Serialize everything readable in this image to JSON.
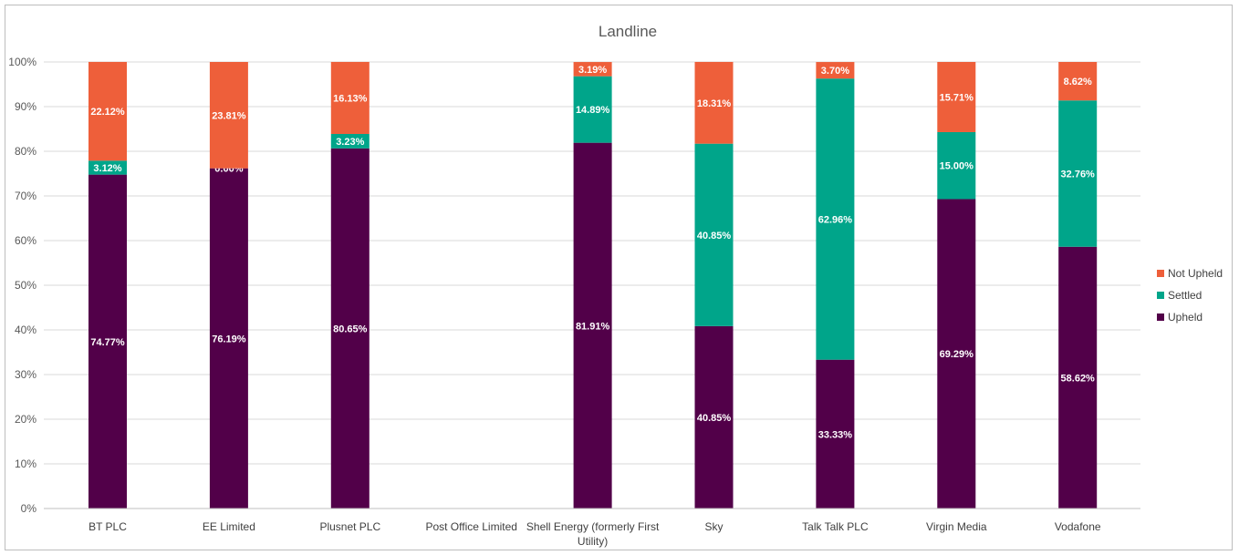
{
  "chart_data": {
    "type": "bar",
    "stacked": true,
    "title": "Landline",
    "categories": [
      "BT PLC",
      "EE Limited",
      "Plusnet PLC",
      "Post Office Limited",
      "Shell Energy (formerly First Utility)",
      "Sky",
      "Talk Talk PLC",
      "Virgin Media",
      "Vodafone"
    ],
    "series": [
      {
        "name": "Upheld",
        "color": "#520049",
        "values": [
          74.77,
          76.19,
          80.65,
          0,
          81.91,
          40.85,
          33.33,
          69.29,
          58.62
        ],
        "labels": [
          "74.77%",
          "76.19%",
          "80.65%",
          "",
          "81.91%",
          "40.85%",
          "33.33%",
          "69.29%",
          "58.62%"
        ]
      },
      {
        "name": "Settled",
        "color": "#00A58A",
        "values": [
          3.12,
          0.0,
          3.23,
          0,
          14.89,
          40.85,
          62.96,
          15.0,
          32.76
        ],
        "labels": [
          "3.12%",
          "0.00%",
          "3.23%",
          "",
          "14.89%",
          "40.85%",
          "62.96%",
          "15.00%",
          "32.76%"
        ]
      },
      {
        "name": "Not Upheld",
        "color": "#EE5F3A",
        "values": [
          22.12,
          23.81,
          16.13,
          0,
          3.19,
          18.31,
          3.7,
          15.71,
          8.62
        ],
        "labels": [
          "22.12%",
          "23.81%",
          "16.13%",
          "",
          "3.19%",
          "18.31%",
          "3.70%",
          "15.71%",
          "8.62%"
        ]
      }
    ],
    "yticks": [
      "0%",
      "10%",
      "20%",
      "30%",
      "40%",
      "50%",
      "60%",
      "70%",
      "80%",
      "90%",
      "100%"
    ],
    "ylim": [
      0,
      100
    ],
    "grid": true,
    "legend_position": "right",
    "legend_order": [
      "Not Upheld",
      "Settled",
      "Upheld"
    ]
  }
}
